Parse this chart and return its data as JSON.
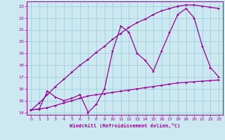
{
  "x": [
    0,
    1,
    2,
    3,
    4,
    5,
    6,
    7,
    8,
    9,
    10,
    11,
    12,
    13,
    14,
    15,
    16,
    17,
    18,
    19,
    20,
    21,
    22,
    23
  ],
  "line_zigzag": [
    14.2,
    14.3,
    15.8,
    15.3,
    15.0,
    15.2,
    15.5,
    14.0,
    14.7,
    16.0,
    19.2,
    21.3,
    20.8,
    19.0,
    18.4,
    17.5,
    19.2,
    20.8,
    22.3,
    22.8,
    22.0,
    19.6,
    17.8,
    17.0
  ],
  "line_diagonal": [
    14.2,
    14.8,
    15.5,
    16.2,
    16.8,
    17.4,
    18.0,
    18.5,
    19.1,
    19.6,
    20.2,
    20.7,
    21.2,
    21.6,
    21.9,
    22.3,
    22.6,
    22.8,
    23.0,
    23.1,
    23.1,
    23.0,
    22.9,
    22.8
  ],
  "line_flat": [
    14.2,
    14.3,
    14.4,
    14.6,
    14.8,
    15.0,
    15.2,
    15.4,
    15.5,
    15.6,
    15.7,
    15.8,
    15.9,
    16.0,
    16.1,
    16.2,
    16.3,
    16.4,
    16.5,
    16.55,
    16.6,
    16.65,
    16.7,
    16.75
  ],
  "color": "#990099",
  "bg_color": "#cce8f0",
  "grid_color": "#99ccdd",
  "xlabel": "Windchill (Refroidissement éolien,°C)",
  "ylim": [
    13.8,
    23.4
  ],
  "xlim": [
    -0.5,
    23.5
  ],
  "yticks": [
    14,
    15,
    16,
    17,
    18,
    19,
    20,
    21,
    22,
    23
  ],
  "xticks": [
    0,
    1,
    2,
    3,
    4,
    5,
    6,
    7,
    8,
    9,
    10,
    11,
    12,
    13,
    14,
    15,
    16,
    17,
    18,
    19,
    20,
    21,
    22,
    23
  ]
}
